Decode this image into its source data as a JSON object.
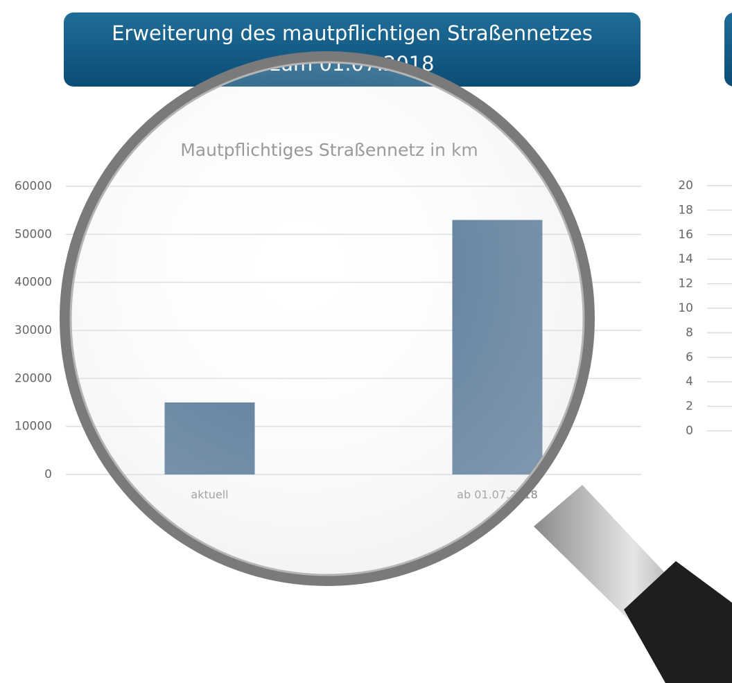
{
  "header": {
    "lines": [
      "Erweiterung des mautpflichtigen Straßennetzes",
      "zum 01.07.2018"
    ]
  },
  "chart_data": [
    {
      "type": "bar",
      "title": "Mautpflichtiges Straßennetz  in km",
      "categories": [
        "aktuell",
        "ab 01.07.2018"
      ],
      "values": [
        15000,
        53000
      ],
      "color": "#4f7193",
      "ylim": [
        0,
        60000
      ],
      "yticks": [
        0,
        10000,
        20000,
        30000,
        40000,
        50000,
        60000
      ],
      "grid": true
    },
    {
      "type": "bar",
      "ylim": [
        0,
        20
      ],
      "yticks": [
        0,
        2,
        4,
        6,
        8,
        10,
        12,
        14,
        16,
        18,
        20
      ],
      "grid": true
    }
  ]
}
